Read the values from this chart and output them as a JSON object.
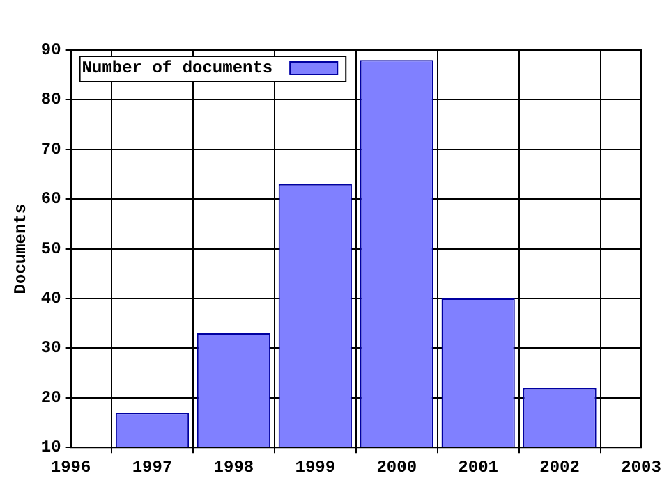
{
  "chart_data": {
    "type": "bar",
    "ylabel": "Documents",
    "x": [
      1997,
      1998,
      1999,
      2000,
      2001,
      2002
    ],
    "series": [
      {
        "name": "Number of documents",
        "color": "#8080ff",
        "values": [
          17,
          33,
          63,
          88,
          40,
          22
        ]
      }
    ],
    "xlim": [
      1996,
      2003
    ],
    "xticks": [
      1996,
      1997,
      1998,
      1999,
      2000,
      2001,
      2002,
      2003
    ],
    "ylim": [
      10,
      90
    ],
    "yticks": [
      10,
      20,
      30,
      40,
      50,
      60,
      70,
      80,
      90
    ],
    "grid": true,
    "legend": "top left"
  }
}
